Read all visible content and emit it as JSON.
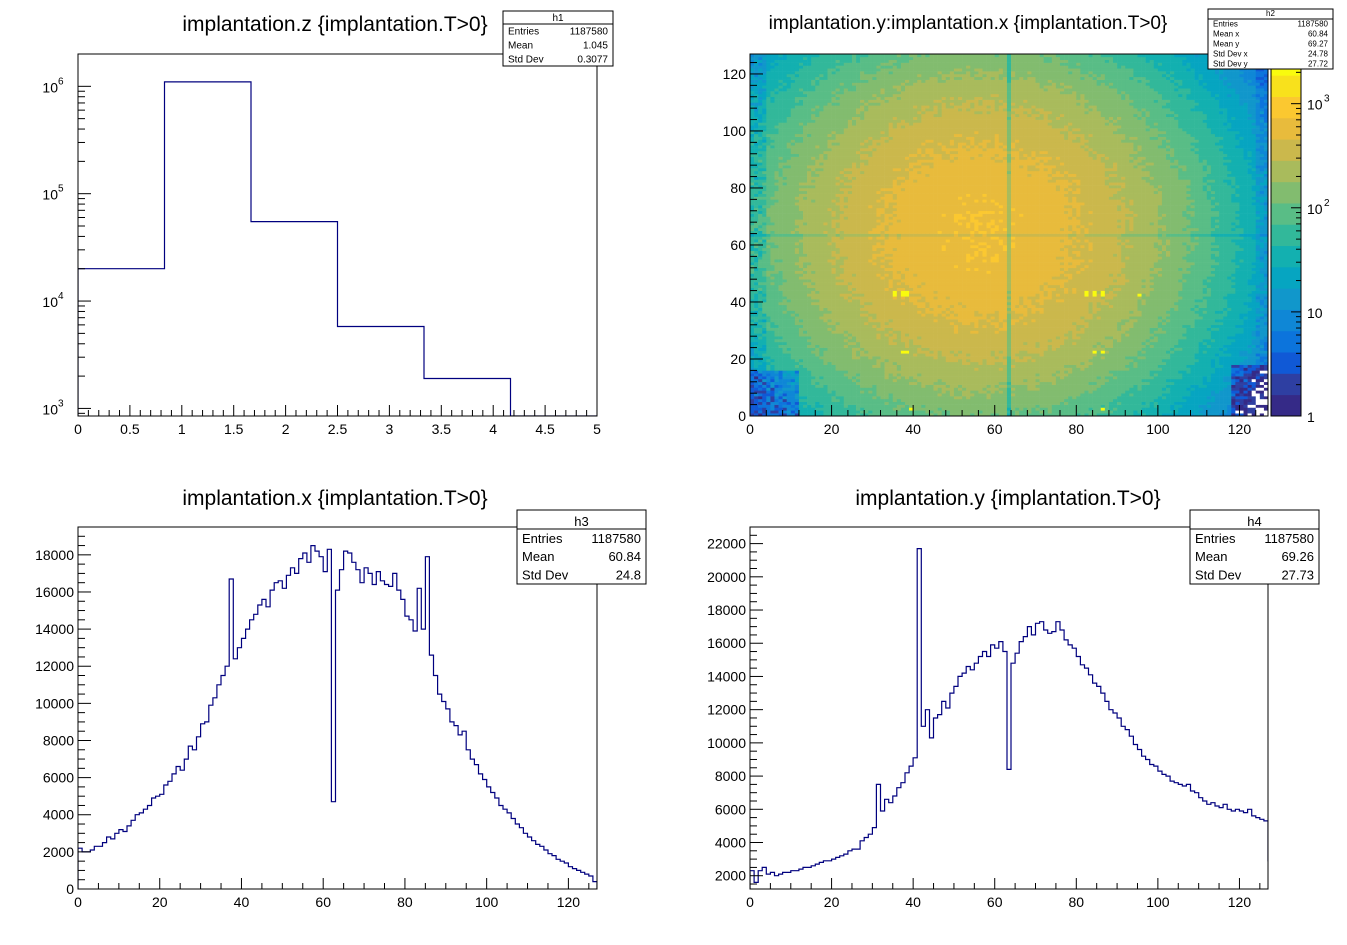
{
  "chart_data": [
    {
      "id": "h1",
      "type": "histogram",
      "title": "implantation.z {implantation.T>0}",
      "xlabel": "",
      "ylabel": "",
      "xlim": [
        0,
        5
      ],
      "ylim": [
        850,
        2000000
      ],
      "log_y": true,
      "grid": false,
      "x_ticks": [
        "0",
        "0.5",
        "1",
        "1.5",
        "2",
        "2.5",
        "3",
        "3.5",
        "4",
        "4.5",
        "5"
      ],
      "y_ticks": [
        {
          "value": 1000,
          "base": "10",
          "exp": "3"
        },
        {
          "value": 10000,
          "base": "10",
          "exp": "4"
        },
        {
          "value": 100000,
          "base": "10",
          "exp": "5"
        },
        {
          "value": 1000000,
          "base": "10",
          "exp": "6"
        }
      ],
      "bin_edges": [
        0,
        0.833,
        1.667,
        2.5,
        3.333,
        4.167,
        5
      ],
      "values": [
        20000,
        1100000,
        55000,
        5800,
        1900,
        0
      ],
      "stats": {
        "name": "h1",
        "position": "top-right",
        "rows": [
          {
            "label": "Entries",
            "value": "1187580"
          },
          {
            "label": "Mean",
            "value": "1.045"
          },
          {
            "label": "Std Dev",
            "value": "0.3077"
          }
        ]
      }
    },
    {
      "id": "h2",
      "type": "heatmap",
      "title": "implantation.y:implantation.x {implantation.T>0}",
      "xlabel": "",
      "ylabel": "",
      "xlim": [
        0,
        127
      ],
      "ylim": [
        0,
        127
      ],
      "x_ticks": [
        "0",
        "20",
        "40",
        "60",
        "80",
        "100",
        "120"
      ],
      "y_ticks": [
        "0",
        "20",
        "40",
        "60",
        "80",
        "100",
        "120"
      ],
      "grid": false,
      "colorbar": {
        "scale": "log",
        "palette": "kBird",
        "range": [
          1,
          3000
        ],
        "ticks": [
          {
            "value": 1,
            "label": "1"
          },
          {
            "value": 10,
            "label": "10"
          },
          {
            "value": 100,
            "base": "10",
            "exp": "2"
          },
          {
            "value": 1000,
            "base": "10",
            "exp": "3"
          }
        ]
      },
      "model": {
        "description_units": "counts per 1x1 bin",
        "peak_center": [
          56,
          64
        ],
        "peak_value": 700,
        "dead_column_x": 63,
        "dead_row_y": 63,
        "hot_pixels": [
          [
            35,
            42
          ],
          [
            37,
            42
          ],
          [
            38,
            42
          ],
          [
            35,
            43
          ],
          [
            37,
            43
          ],
          [
            38,
            43
          ],
          [
            82,
            42
          ],
          [
            84,
            42
          ],
          [
            86,
            42
          ],
          [
            95,
            42
          ],
          [
            82,
            43
          ],
          [
            84,
            43
          ],
          [
            86,
            43
          ],
          [
            37,
            22
          ],
          [
            38,
            22
          ],
          [
            84,
            22
          ],
          [
            86,
            22
          ],
          [
            39,
            2
          ],
          [
            86,
            2
          ]
        ]
      },
      "stats": {
        "name": "h2",
        "position": "top-right",
        "rows": [
          {
            "label": "Entries",
            "value": "1187580"
          },
          {
            "label": "Mean x",
            "value": "60.84"
          },
          {
            "label": "Mean y",
            "value": "69.27"
          },
          {
            "label": "Std Dev x",
            "value": "24.78"
          },
          {
            "label": "Std Dev y",
            "value": "27.72"
          }
        ]
      }
    },
    {
      "id": "h3",
      "type": "histogram",
      "title": "implantation.x {implantation.T>0}",
      "xlabel": "",
      "ylabel": "",
      "xlim": [
        0,
        127
      ],
      "ylim": [
        0,
        19500
      ],
      "x_ticks": [
        "0",
        "20",
        "40",
        "60",
        "80",
        "100",
        "120"
      ],
      "y_ticks": [
        "0",
        "2000",
        "4000",
        "6000",
        "8000",
        "10000",
        "12000",
        "14000",
        "16000",
        "18000"
      ],
      "grid": false,
      "bin_width": 1,
      "values": [
        2200,
        2000,
        2000,
        2100,
        2300,
        2300,
        2500,
        2800,
        2700,
        3000,
        3200,
        3100,
        3400,
        3700,
        4000,
        4100,
        4300,
        4500,
        4900,
        5000,
        5100,
        5600,
        5800,
        6200,
        6600,
        6400,
        7000,
        7700,
        7500,
        8200,
        8900,
        9000,
        9900,
        10300,
        11000,
        11500,
        12000,
        16700,
        12400,
        13000,
        13500,
        14000,
        14500,
        14800,
        15300,
        15600,
        15200,
        16100,
        16500,
        16600,
        16200,
        16900,
        17300,
        17000,
        17800,
        18100,
        17600,
        18500,
        18200,
        17900,
        17100,
        18300,
        4700,
        16100,
        17200,
        18200,
        18100,
        17600,
        17200,
        16500,
        17300,
        17000,
        16400,
        17100,
        16600,
        16400,
        16300,
        17000,
        16100,
        15600,
        14700,
        14500,
        13900,
        16200,
        14000,
        17900,
        12600,
        11500,
        10500,
        10100,
        9700,
        9000,
        8800,
        8300,
        8500,
        7500,
        7000,
        6700,
        6200,
        5900,
        5500,
        5200,
        4900,
        4500,
        4300,
        4100,
        3800,
        3500,
        3300,
        3000,
        2800,
        2600,
        2400,
        2300,
        2100,
        1900,
        1800,
        1600,
        1500,
        1400,
        1200,
        1100,
        1000,
        900,
        800,
        700,
        400
      ],
      "stats": {
        "name": "h3",
        "position": "top-right",
        "rows": [
          {
            "label": "Entries",
            "value": "1187580"
          },
          {
            "label": "Mean",
            "value": "60.84"
          },
          {
            "label": "Std Dev",
            "value": "24.8"
          }
        ]
      }
    },
    {
      "id": "h4",
      "type": "histogram",
      "title": "implantation.y {implantation.T>0}",
      "xlabel": "",
      "ylabel": "",
      "xlim": [
        0,
        127
      ],
      "ylim": [
        1200,
        23000
      ],
      "x_ticks": [
        "0",
        "20",
        "40",
        "60",
        "80",
        "100",
        "120"
      ],
      "y_ticks": [
        "2000",
        "4000",
        "6000",
        "8000",
        "10000",
        "12000",
        "14000",
        "16000",
        "18000",
        "20000",
        "22000"
      ],
      "grid": false,
      "bin_width": 1,
      "values": [
        2300,
        1600,
        2300,
        2500,
        2100,
        2200,
        2000,
        2100,
        2200,
        2200,
        2300,
        2300,
        2400,
        2500,
        2500,
        2600,
        2700,
        2800,
        2900,
        2900,
        3000,
        3100,
        3200,
        3300,
        3500,
        3600,
        3600,
        4100,
        4300,
        4500,
        4900,
        7500,
        5900,
        6600,
        6400,
        6800,
        7300,
        7600,
        8200,
        8600,
        9100,
        21700,
        11000,
        12000,
        10300,
        11500,
        11700,
        12500,
        12100,
        13000,
        13400,
        14000,
        14200,
        14600,
        14400,
        14800,
        15200,
        15500,
        15200,
        15900,
        15700,
        16100,
        15500,
        8400,
        14800,
        15400,
        16100,
        16400,
        17000,
        16500,
        17200,
        17300,
        16800,
        16600,
        16700,
        17300,
        16800,
        16200,
        15900,
        15700,
        15200,
        14700,
        14500,
        14100,
        13600,
        13400,
        13000,
        12500,
        12000,
        11800,
        11500,
        11000,
        10800,
        10400,
        9900,
        9600,
        9200,
        9000,
        8700,
        8600,
        8300,
        8100,
        8000,
        7700,
        7600,
        7500,
        7400,
        7500,
        7100,
        7000,
        6700,
        6500,
        6300,
        6400,
        6200,
        6100,
        6300,
        6000,
        5900,
        6000,
        5900,
        5800,
        6000,
        5600,
        5500,
        5400,
        5300,
        2900
      ],
      "stats": {
        "name": "h4",
        "position": "top-right",
        "rows": [
          {
            "label": "Entries",
            "value": "1187580"
          },
          {
            "label": "Mean",
            "value": "69.26"
          },
          {
            "label": "Std Dev",
            "value": "27.73"
          }
        ]
      }
    }
  ],
  "colors": {
    "line": "#00007f",
    "frame": "#000000",
    "background": "#ffffff",
    "empty_cell": "#ffffff",
    "palette": [
      "#352a87",
      "#2e3fa2",
      "#1059d6",
      "#0c74dc",
      "#0f87d6",
      "#1197cb",
      "#06a5c1",
      "#13b0b0",
      "#32b89a",
      "#59bd86",
      "#82bc6f",
      "#a9bb5c",
      "#cbb84c",
      "#e8bb3c",
      "#fbc830",
      "#f8e11c",
      "#f9fb0e"
    ]
  }
}
